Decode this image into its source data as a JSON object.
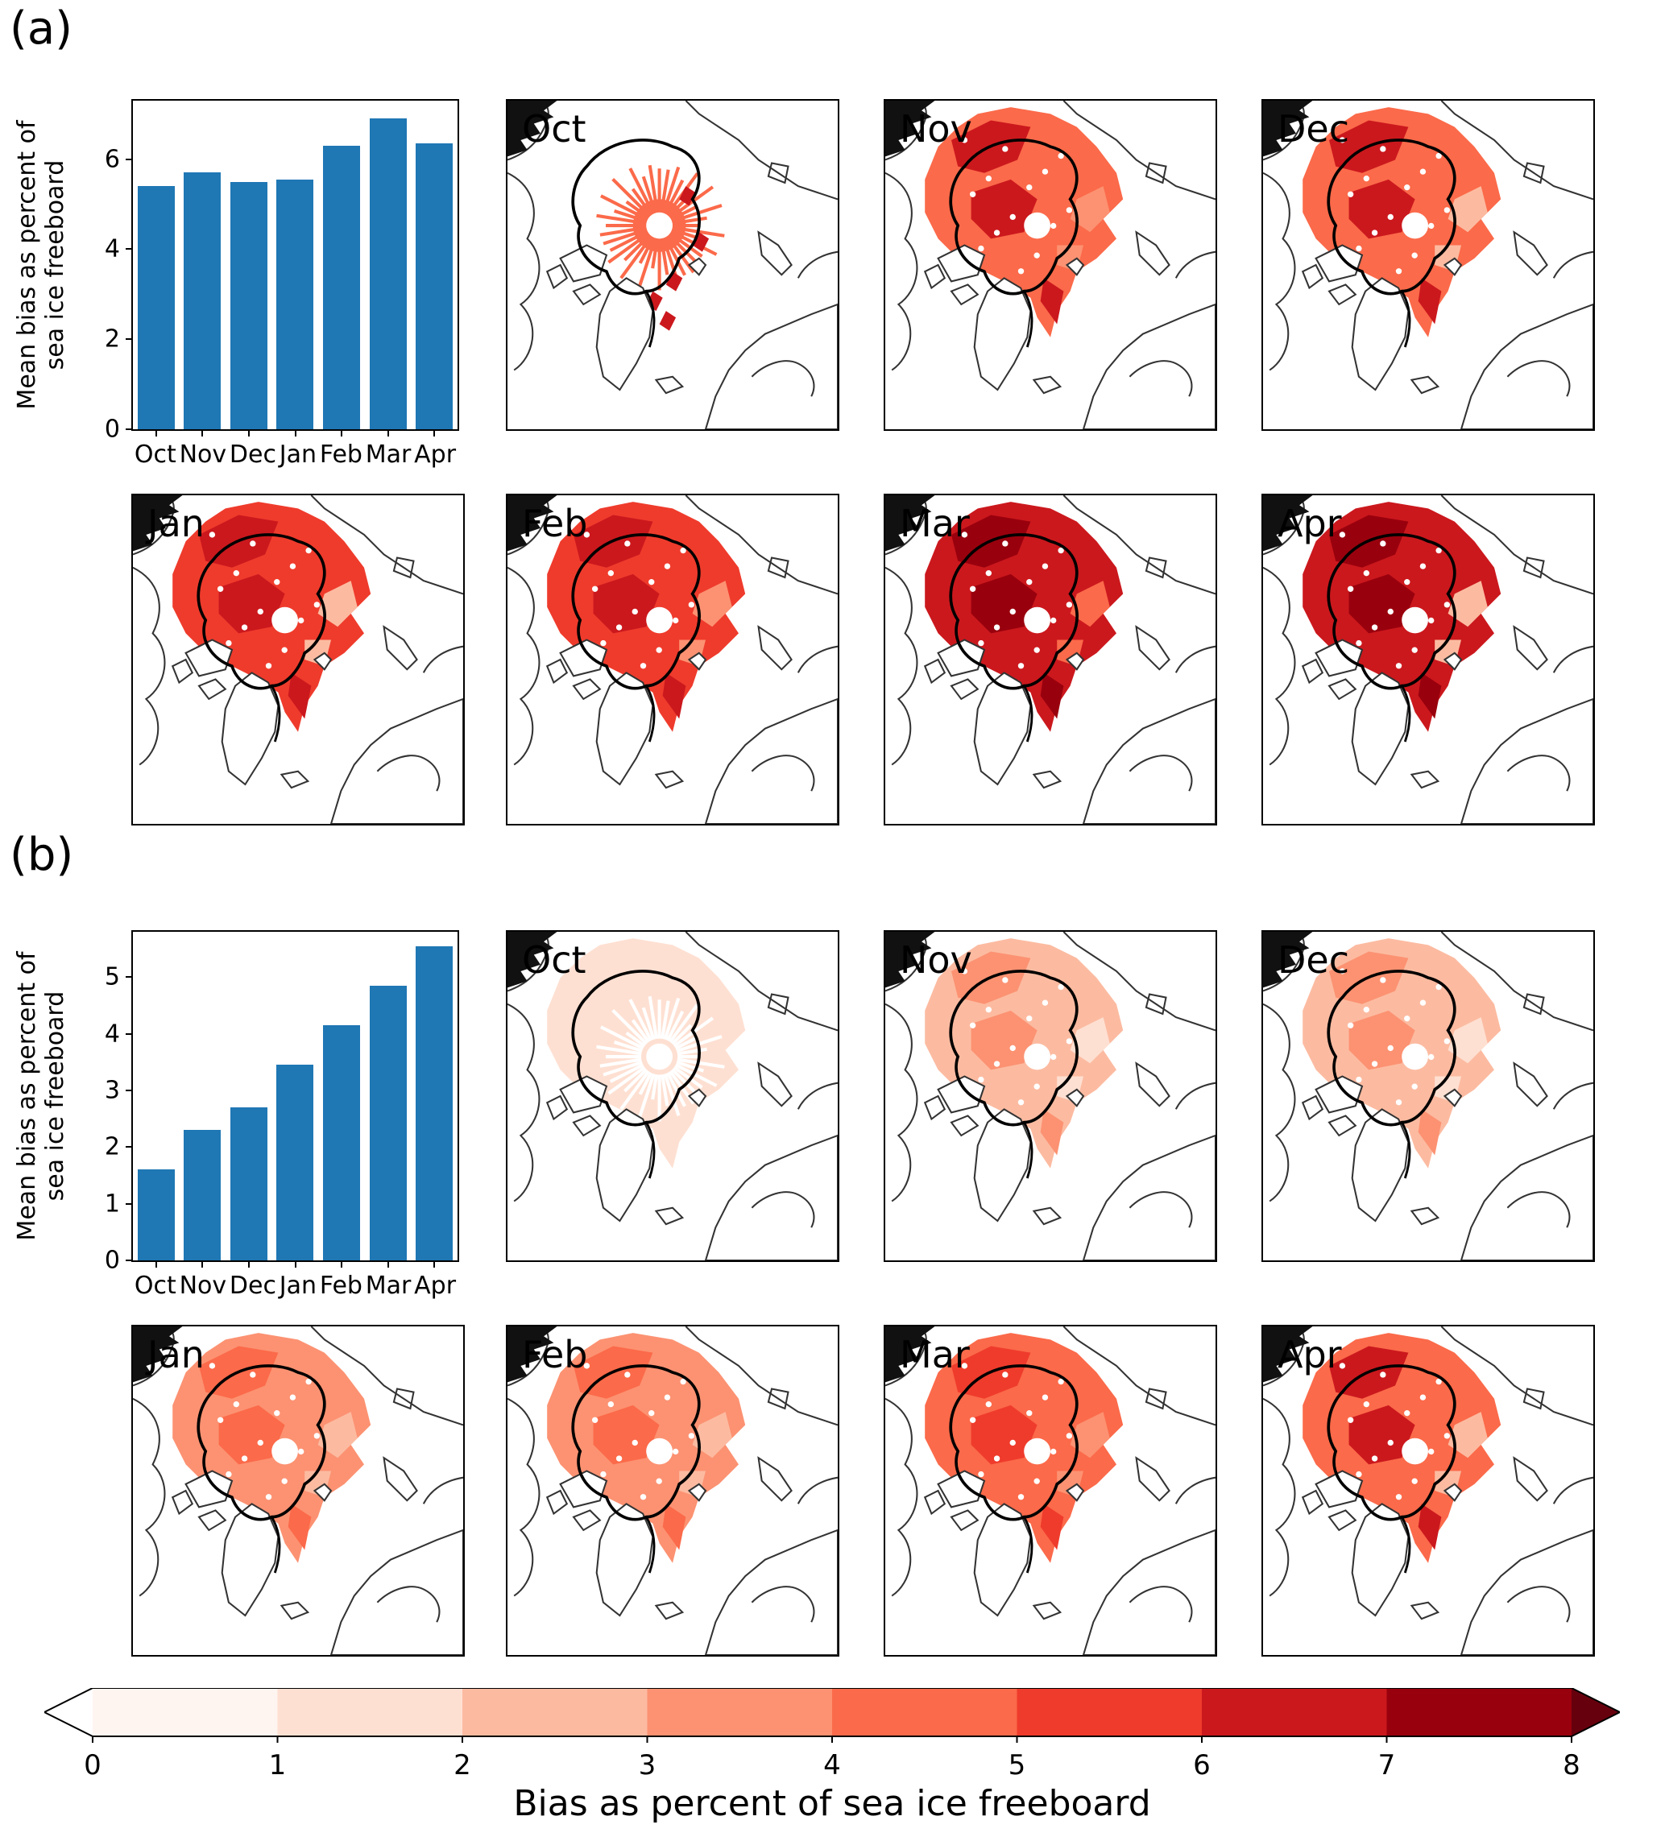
{
  "panel_a": {
    "label": "(a)",
    "maps": [
      {
        "label": "Oct",
        "style": "radial-sparse",
        "base": "#fb6a4a",
        "dark": "#cb181d",
        "light": "#fcbba1"
      },
      {
        "label": "Nov",
        "style": "full",
        "base": "#fb6a4a",
        "dark": "#cb181d",
        "light": "#fc9272"
      },
      {
        "label": "Dec",
        "style": "full",
        "base": "#fb6a4a",
        "dark": "#cb181d",
        "light": "#fcbba1"
      },
      {
        "label": "Jan",
        "style": "full",
        "base": "#ef3b2c",
        "dark": "#cb181d",
        "light": "#fcbba1"
      },
      {
        "label": "Feb",
        "style": "full",
        "base": "#ef3b2c",
        "dark": "#cb181d",
        "light": "#fc9272"
      },
      {
        "label": "Mar",
        "style": "full",
        "base": "#cb181d",
        "dark": "#99000d",
        "light": "#fb6a4a"
      },
      {
        "label": "Apr",
        "style": "full",
        "base": "#cb181d",
        "dark": "#99000d",
        "light": "#fcbba1"
      }
    ]
  },
  "panel_b": {
    "label": "(b)",
    "maps": [
      {
        "label": "Oct",
        "style": "radial-pale",
        "base": "#fee0d2",
        "dark": "#fcbba1",
        "light": "#fff5f0"
      },
      {
        "label": "Nov",
        "style": "full",
        "base": "#fcbba1",
        "dark": "#fc9272",
        "light": "#fee0d2"
      },
      {
        "label": "Dec",
        "style": "full",
        "base": "#fcbba1",
        "dark": "#fc9272",
        "light": "#fee0d2"
      },
      {
        "label": "Jan",
        "style": "full",
        "base": "#fc9272",
        "dark": "#fb6a4a",
        "light": "#fcbba1"
      },
      {
        "label": "Feb",
        "style": "full",
        "base": "#fc9272",
        "dark": "#fb6a4a",
        "light": "#fcbba1"
      },
      {
        "label": "Mar",
        "style": "full",
        "base": "#fb6a4a",
        "dark": "#ef3b2c",
        "light": "#fc9272"
      },
      {
        "label": "Apr",
        "style": "full",
        "base": "#fb6a4a",
        "dark": "#cb181d",
        "light": "#fcbba1"
      }
    ]
  },
  "colorbar": {
    "label": "Bias as percent of sea ice freeboard",
    "ticks": [
      "0",
      "1",
      "2",
      "3",
      "4",
      "5",
      "6",
      "7",
      "8"
    ],
    "segment_colors": [
      "#fff5f0",
      "#fee0d2",
      "#fcbba1",
      "#fc9272",
      "#fb6a4a",
      "#ef3b2c",
      "#cb181d",
      "#99000d"
    ],
    "under_color": "#ffffff",
    "over_color": "#67000d"
  },
  "chart_data": [
    {
      "type": "bar",
      "panel": "(a)",
      "title": "",
      "ylabel": "Mean bias as percent of\nsea ice freeboard",
      "xlabel": "",
      "categories": [
        "Oct",
        "Nov",
        "Dec",
        "Jan",
        "Feb",
        "Mar",
        "Apr"
      ],
      "values": [
        5.4,
        5.7,
        5.5,
        5.55,
        6.3,
        6.9,
        6.35
      ],
      "yticks": [
        0,
        2,
        4,
        6
      ],
      "ylim": [
        0,
        7.3
      ],
      "bar_color": "#1f77b4",
      "grid": false,
      "legend": null
    },
    {
      "type": "bar",
      "panel": "(b)",
      "title": "",
      "ylabel": "Mean bias as percent of\nsea ice freeboard",
      "xlabel": "",
      "categories": [
        "Oct",
        "Nov",
        "Dec",
        "Jan",
        "Feb",
        "Mar",
        "Apr"
      ],
      "values": [
        1.6,
        2.3,
        2.7,
        3.45,
        4.15,
        4.85,
        5.55
      ],
      "yticks": [
        0,
        1,
        2,
        3,
        4,
        5
      ],
      "ylim": [
        0,
        5.8
      ],
      "bar_color": "#1f77b4",
      "grid": false,
      "legend": null
    }
  ]
}
